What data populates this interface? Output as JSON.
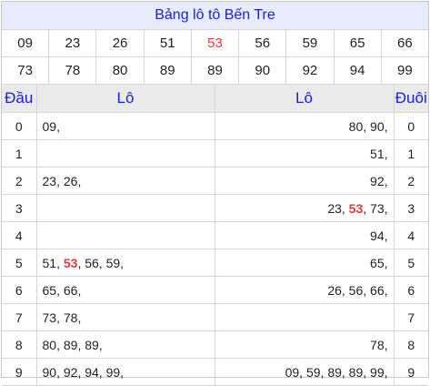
{
  "title": "Bảng lô tô Bến Tre",
  "numbers_row1": [
    {
      "text": "09",
      "highlight": false
    },
    {
      "text": "23",
      "highlight": false
    },
    {
      "text": "26",
      "highlight": false
    },
    {
      "text": "51",
      "highlight": false
    },
    {
      "text": "53",
      "highlight": true
    },
    {
      "text": "56",
      "highlight": false
    },
    {
      "text": "59",
      "highlight": false
    },
    {
      "text": "65",
      "highlight": false
    },
    {
      "text": "66",
      "highlight": false
    }
  ],
  "numbers_row2": [
    {
      "text": "73",
      "highlight": false
    },
    {
      "text": "78",
      "highlight": false
    },
    {
      "text": "80",
      "highlight": false
    },
    {
      "text": "89",
      "highlight": false
    },
    {
      "text": "89",
      "highlight": false
    },
    {
      "text": "90",
      "highlight": false
    },
    {
      "text": "92",
      "highlight": false
    },
    {
      "text": "94",
      "highlight": false
    },
    {
      "text": "99",
      "highlight": false
    }
  ],
  "headers": {
    "dau": "Đầu",
    "lo_left": "Lô",
    "lo_right": "Lô",
    "duoi": "Đuôi"
  },
  "rows": [
    {
      "dau": "0",
      "left": [
        {
          "t": "09",
          "h": false
        }
      ],
      "right": [
        {
          "t": "80",
          "h": false
        },
        {
          "t": "90",
          "h": false
        }
      ],
      "duoi": "0"
    },
    {
      "dau": "1",
      "left": [],
      "right": [
        {
          "t": "51",
          "h": false
        }
      ],
      "duoi": "1"
    },
    {
      "dau": "2",
      "left": [
        {
          "t": "23",
          "h": false
        },
        {
          "t": "26",
          "h": false
        }
      ],
      "right": [
        {
          "t": "92",
          "h": false
        }
      ],
      "duoi": "2"
    },
    {
      "dau": "3",
      "left": [],
      "right": [
        {
          "t": "23",
          "h": false
        },
        {
          "t": "53",
          "h": true
        },
        {
          "t": "73",
          "h": false
        }
      ],
      "duoi": "3"
    },
    {
      "dau": "4",
      "left": [],
      "right": [
        {
          "t": "94",
          "h": false
        }
      ],
      "duoi": "4"
    },
    {
      "dau": "5",
      "left": [
        {
          "t": "51",
          "h": false
        },
        {
          "t": "53",
          "h": true
        },
        {
          "t": "56",
          "h": false
        },
        {
          "t": "59",
          "h": false
        }
      ],
      "right": [
        {
          "t": "65",
          "h": false
        }
      ],
      "duoi": "5"
    },
    {
      "dau": "6",
      "left": [
        {
          "t": "65",
          "h": false
        },
        {
          "t": "66",
          "h": false
        }
      ],
      "right": [
        {
          "t": "26",
          "h": false
        },
        {
          "t": "56",
          "h": false
        },
        {
          "t": "66",
          "h": false
        }
      ],
      "duoi": "6"
    },
    {
      "dau": "7",
      "left": [
        {
          "t": "73",
          "h": false
        },
        {
          "t": "78",
          "h": false
        }
      ],
      "right": [],
      "duoi": "7"
    },
    {
      "dau": "8",
      "left": [
        {
          "t": "80",
          "h": false
        },
        {
          "t": "89",
          "h": false
        },
        {
          "t": "89",
          "h": false
        }
      ],
      "right": [
        {
          "t": "78",
          "h": false
        }
      ],
      "duoi": "8"
    },
    {
      "dau": "9",
      "left": [
        {
          "t": "90",
          "h": false
        },
        {
          "t": "92",
          "h": false
        },
        {
          "t": "94",
          "h": false
        },
        {
          "t": "99",
          "h": false
        }
      ],
      "right": [
        {
          "t": "09",
          "h": false
        },
        {
          "t": "59",
          "h": false
        },
        {
          "t": "89",
          "h": false
        },
        {
          "t": "89",
          "h": false
        },
        {
          "t": "99",
          "h": false
        }
      ],
      "duoi": "9"
    }
  ],
  "colors": {
    "title_text": "#1a22d0",
    "title_bg": "#e8ebfb",
    "highlight": "#e03a3a",
    "header_bg": "#eaeaea"
  }
}
